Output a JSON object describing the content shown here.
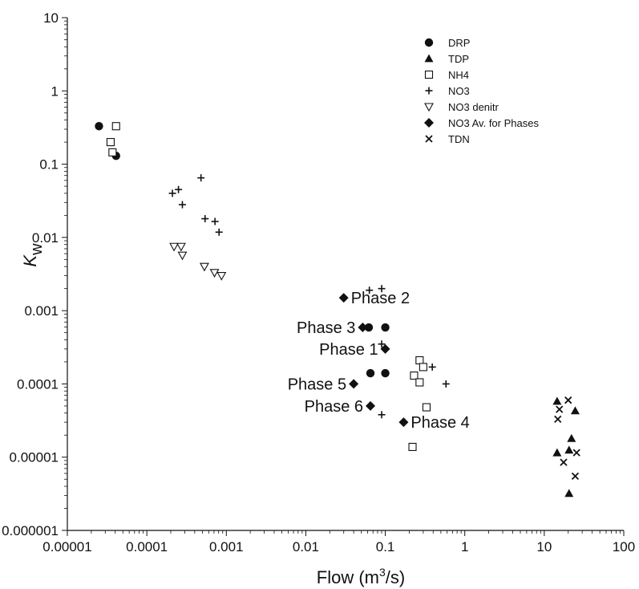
{
  "chart_data": {
    "type": "scatter",
    "x_scale": "log",
    "y_scale": "log",
    "xlim": [
      1e-05,
      100
    ],
    "ylim": [
      1e-06,
      10
    ],
    "x_ticks": [
      "0.00001",
      "0.0001",
      "0.001",
      "0.01",
      "0.1",
      "1",
      "10",
      "100"
    ],
    "y_ticks": [
      "10",
      "1",
      "0.1",
      "0.01",
      "0.001",
      "0.0001",
      "0.00001",
      "0.000001"
    ],
    "xlabel_main": "Flow (m",
    "xlabel_sup": "3",
    "xlabel_end": "/s)",
    "ylabel_main": "K",
    "ylabel_sub": "w",
    "grid": false,
    "legend_position": "top-right",
    "series": [
      {
        "name": "DRP",
        "marker": "circle-filled",
        "points": [
          [
            2.5e-05,
            0.33
          ],
          [
            4.1e-05,
            0.13
          ],
          [
            0.062,
            0.00059
          ],
          [
            0.1,
            0.00059
          ],
          [
            0.065,
            0.00014
          ],
          [
            0.1,
            0.00014
          ]
        ]
      },
      {
        "name": "TDP",
        "marker": "triangle-filled",
        "points": [
          [
            14.5,
            5.8e-05
          ],
          [
            14.5,
            1.15e-05
          ],
          [
            20.5,
            1.25e-05
          ],
          [
            22,
            1.8e-05
          ],
          [
            24.5,
            4.3e-05
          ],
          [
            20.5,
            3.2e-06
          ]
        ]
      },
      {
        "name": "NH4",
        "marker": "square-open",
        "points": [
          [
            3.5e-05,
            0.2
          ],
          [
            3.7e-05,
            0.145
          ],
          [
            4.1e-05,
            0.33
          ],
          [
            0.23,
            0.00013
          ],
          [
            0.27,
            0.00021
          ],
          [
            0.3,
            0.00017
          ],
          [
            0.27,
            0.000105
          ],
          [
            0.33,
            4.8e-05
          ],
          [
            0.22,
            1.38e-05
          ]
        ]
      },
      {
        "name": "NO3",
        "marker": "plus",
        "points": [
          [
            0.00021,
            0.04
          ],
          [
            0.00025,
            0.045
          ],
          [
            0.00028,
            0.028
          ],
          [
            0.00048,
            0.065
          ],
          [
            0.00054,
            0.018
          ],
          [
            0.00072,
            0.0165
          ],
          [
            0.00081,
            0.0118
          ],
          [
            0.063,
            0.0019
          ],
          [
            0.09,
            0.002
          ],
          [
            0.09,
            0.00035
          ],
          [
            0.39,
            0.00017
          ],
          [
            0.58,
            0.0001
          ],
          [
            0.09,
            3.8e-05
          ]
        ]
      },
      {
        "name": "NO3 denitr",
        "marker": "triangle-down-open",
        "points": [
          [
            0.00022,
            0.0075
          ],
          [
            0.00027,
            0.0075
          ],
          [
            0.00028,
            0.0057
          ],
          [
            0.00053,
            0.004
          ],
          [
            0.00071,
            0.0033
          ],
          [
            0.00087,
            0.003
          ]
        ]
      },
      {
        "name": "NO3 Av. for Phases",
        "marker": "diamond-filled",
        "points": [
          [
            0.03,
            0.0015
          ],
          [
            0.052,
            0.00059
          ],
          [
            0.1,
            0.0003
          ],
          [
            0.17,
            3e-05
          ],
          [
            0.04,
            0.0001
          ],
          [
            0.065,
            5e-05
          ]
        ]
      },
      {
        "name": "TDN",
        "marker": "x",
        "points": [
          [
            15.5,
            4.5e-05
          ],
          [
            14.8,
            3.3e-05
          ],
          [
            20,
            6e-05
          ],
          [
            17.5,
            8.5e-06
          ],
          [
            25.5,
            1.15e-05
          ],
          [
            24.5,
            5.5e-06
          ]
        ]
      }
    ],
    "annotations": [
      {
        "text": "Phase 2",
        "x": 0.03,
        "y": 0.0015,
        "anchor": "right"
      },
      {
        "text": "Phase 3",
        "x": 0.052,
        "y": 0.00059,
        "anchor": "left"
      },
      {
        "text": "Phase 1",
        "x": 0.1,
        "y": 0.0003,
        "anchor": "left"
      },
      {
        "text": "Phase 5",
        "x": 0.04,
        "y": 0.0001,
        "anchor": "left"
      },
      {
        "text": "Phase 6",
        "x": 0.065,
        "y": 5e-05,
        "anchor": "left"
      },
      {
        "text": "Phase 4",
        "x": 0.17,
        "y": 3e-05,
        "anchor": "right"
      }
    ]
  }
}
